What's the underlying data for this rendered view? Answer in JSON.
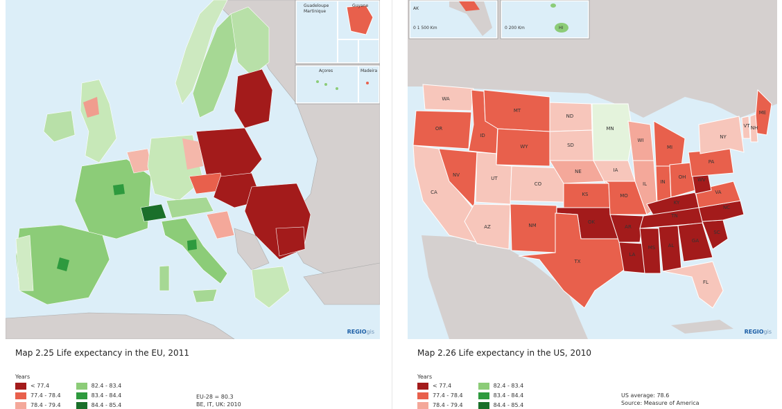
{
  "eu_map": {
    "caption": "Map 2.25 Life expectancy in the EU, 2011",
    "legend_title": "Years",
    "legend_items": [
      {
        "label": "< 77.4",
        "color": "#a31b1b"
      },
      {
        "label": "77.4 - 78.4",
        "color": "#e8604c"
      },
      {
        "label": "78.4 - 79.4",
        "color": "#f4a89a"
      },
      {
        "label": "82.4 - 83.4",
        "color": "#8ccc78"
      },
      {
        "label": "83.4 - 84.4",
        "color": "#2e9a3e"
      },
      {
        "label": "84.4 - 85.4",
        "color": "#1a6f2a"
      }
    ],
    "note_line1": "EU-28 = 80.3",
    "note_line2": "BE, IT, UK: 2010",
    "credit_main": "REGIO",
    "credit_sub": "gis",
    "inset_labels": [
      "Guadeloupe",
      "Martinique",
      "Guyane",
      "Açores",
      "Madeira"
    ]
  },
  "us_map": {
    "caption": "Map 2.26 Life expectancy in the US, 2010",
    "legend_title": "Years",
    "legend_items": [
      {
        "label": "< 77.4",
        "color": "#a31b1b"
      },
      {
        "label": "77.4 - 78.4",
        "color": "#e8604c"
      },
      {
        "label": "78.4 - 79.4",
        "color": "#f4a89a"
      },
      {
        "label": "82.4 - 83.4",
        "color": "#8ccc78"
      },
      {
        "label": "83.4 - 84.4",
        "color": "#2e9a3e"
      },
      {
        "label": "84.4 - 85.4",
        "color": "#1a6f2a"
      }
    ],
    "note_line1": "US average: 78.6",
    "note_line2": "Source: Measure of America",
    "credit_main": "REGIO",
    "credit_sub": "gis",
    "inset_ak": "AK",
    "inset_hi": "HI",
    "scale_ak": "0          1 500 Km",
    "scale_hi": "0        200 Km"
  },
  "states": [
    {
      "id": "WA",
      "fill": "#f7c6bb"
    },
    {
      "id": "OR",
      "fill": "#e8604c"
    },
    {
      "id": "CA",
      "fill": "#f7c6bb"
    },
    {
      "id": "ID",
      "fill": "#e8604c"
    },
    {
      "id": "NV",
      "fill": "#e8604c"
    },
    {
      "id": "MT",
      "fill": "#e8604c"
    },
    {
      "id": "WY",
      "fill": "#e8604c"
    },
    {
      "id": "UT",
      "fill": "#f7c6bb"
    },
    {
      "id": "AZ",
      "fill": "#f7c6bb"
    },
    {
      "id": "CO",
      "fill": "#f7c6bb"
    },
    {
      "id": "NM",
      "fill": "#e8604c"
    },
    {
      "id": "ND",
      "fill": "#f7c6bb"
    },
    {
      "id": "SD",
      "fill": "#f7c6bb"
    },
    {
      "id": "NE",
      "fill": "#f4a89a"
    },
    {
      "id": "KS",
      "fill": "#e8604c"
    },
    {
      "id": "OK",
      "fill": "#a31b1b"
    },
    {
      "id": "TX",
      "fill": "#e8604c"
    },
    {
      "id": "MN",
      "fill": "#e4f3dc"
    },
    {
      "id": "IA",
      "fill": "#f7c6bb"
    },
    {
      "id": "MO",
      "fill": "#e8604c"
    },
    {
      "id": "AR",
      "fill": "#a31b1b"
    },
    {
      "id": "LA",
      "fill": "#a31b1b"
    },
    {
      "id": "WI",
      "fill": "#f4a89a"
    },
    {
      "id": "IL",
      "fill": "#f4a89a"
    },
    {
      "id": "MI",
      "fill": "#e8604c"
    },
    {
      "id": "IN",
      "fill": "#e8604c"
    },
    {
      "id": "OH",
      "fill": "#e8604c"
    },
    {
      "id": "KY",
      "fill": "#a31b1b"
    },
    {
      "id": "TN",
      "fill": "#a31b1b"
    },
    {
      "id": "MS",
      "fill": "#a31b1b"
    },
    {
      "id": "AL",
      "fill": "#a31b1b"
    },
    {
      "id": "GA",
      "fill": "#a31b1b"
    },
    {
      "id": "FL",
      "fill": "#f7c6bb"
    },
    {
      "id": "SC",
      "fill": "#a31b1b"
    },
    {
      "id": "NC",
      "fill": "#a31b1b"
    },
    {
      "id": "VA",
      "fill": "#e8604c"
    },
    {
      "id": "WV",
      "fill": "#a31b1b"
    },
    {
      "id": "PA",
      "fill": "#e8604c"
    },
    {
      "id": "NY",
      "fill": "#f7c6bb"
    },
    {
      "id": "ME",
      "fill": "#e8604c"
    },
    {
      "id": "VT",
      "fill": "#f7c6bb"
    },
    {
      "id": "NH",
      "fill": "#f7c6bb"
    }
  ]
}
